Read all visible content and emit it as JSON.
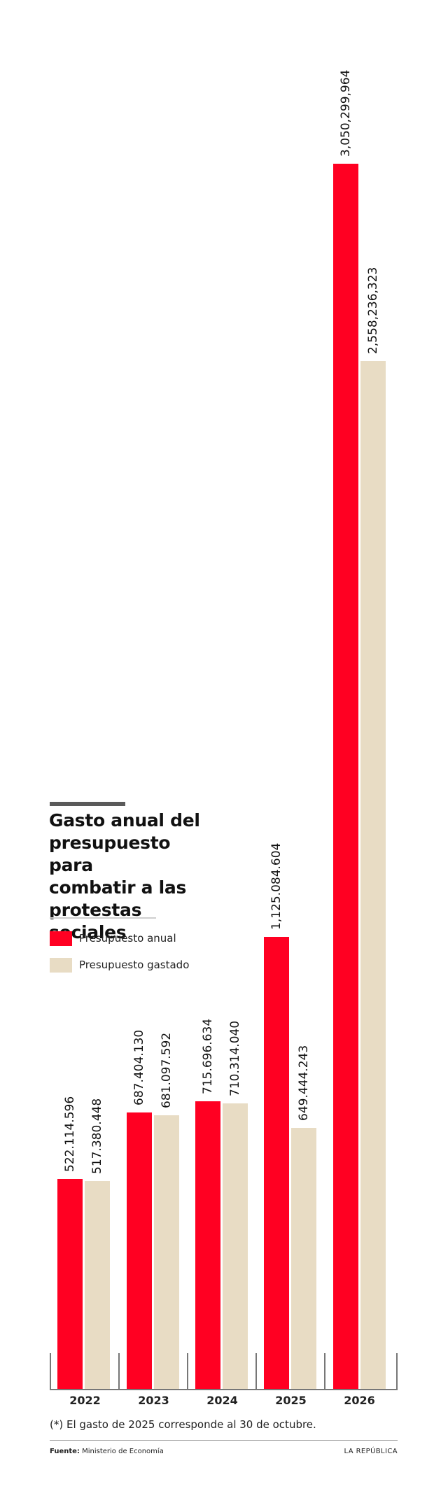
{
  "title": {
    "lines": [
      "Gasto anual del",
      "presupuesto para",
      "combatir a las",
      "protestas sociales"
    ]
  },
  "legend": [
    {
      "label": "Presupuesto anual",
      "color": "#ff0022"
    },
    {
      "label": "Presupuesto gastado",
      "color": "#e8dcc4"
    }
  ],
  "colors": {
    "annual": "#ff0022",
    "spent": "#e8dcc4",
    "axis": "#777777",
    "title_rule": "#5a5a5a"
  },
  "footnote": "(*) El gasto de 2025 corresponde al 30 de octubre.",
  "source": {
    "label": "Fuente:",
    "value": "Ministerio de Economía"
  },
  "brand": "LA REPÚBLICA",
  "years": [
    "2022",
    "2023",
    "2024",
    "2025",
    "2026"
  ],
  "labels": {
    "annual": [
      "522.114.596",
      "687.404.130",
      "715.696.634",
      "1,125.084.604",
      "3,050,299,964"
    ],
    "spent": [
      "517.380.448",
      "681.097.592",
      "710.314.040",
      "649.444.243",
      "2,558,236,323"
    ]
  },
  "chart_data": {
    "type": "bar",
    "title": "Gasto anual del presupuesto para combatir a las protestas sociales",
    "xlabel": "",
    "ylabel": "",
    "categories": [
      "2022",
      "2023",
      "2024",
      "2025",
      "2026"
    ],
    "series": [
      {
        "name": "Presupuesto anual",
        "color": "#ff0022",
        "values": [
          522114596,
          687404130,
          715696634,
          1125084604,
          3050299964
        ]
      },
      {
        "name": "Presupuesto gastado",
        "color": "#e8dcc4",
        "values": [
          517380448,
          681097592,
          710314040,
          649444243,
          2558236323
        ]
      }
    ],
    "legend_position": "upper-left",
    "grid": false,
    "annotations": [
      "(*) El gasto de 2025 corresponde al 30 de octubre."
    ]
  }
}
